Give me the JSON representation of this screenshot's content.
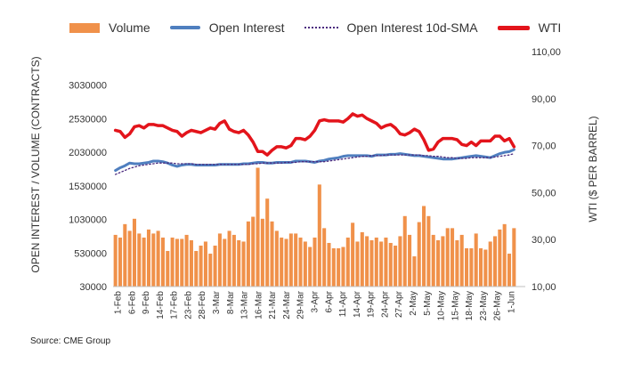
{
  "chart_data": {
    "type": "bar",
    "legend_placement": "top",
    "grid": false,
    "title": "",
    "ylabel_left": "OPEN INTEREST / VOLUME (CONTRACTS)",
    "ylabel_right": "WTI ($ PER BARREL)",
    "left_ticks": [
      "30000",
      "530000",
      "1030000",
      "1530000",
      "2030000",
      "2530000",
      "3030000"
    ],
    "left_range": [
      30000,
      3530000
    ],
    "right_ticks": [
      "10,00",
      "30,00",
      "50,00",
      "70,00",
      "90,00",
      "110,00"
    ],
    "right_range": [
      10,
      110
    ],
    "x_tick_labels": [
      "1-Feb",
      "6-Feb",
      "9-Feb",
      "14-Feb",
      "17-Feb",
      "23-Feb",
      "28-Feb",
      "3-Mar",
      "8-Mar",
      "13-Mar",
      "16-Mar",
      "21-Mar",
      "24-Mar",
      "29-Mar",
      "3-Apr",
      "6-Apr",
      "11-Apr",
      "14-Apr",
      "19-Apr",
      "24-Apr",
      "27-Apr",
      "2-May",
      "5-May",
      "10-May",
      "15-May",
      "18-May",
      "23-May",
      "26-May",
      "1-Jun"
    ],
    "series": [
      {
        "name": "Volume",
        "kind": "bar",
        "axis": "left",
        "color": "#f0914a",
        "values": [
          800000,
          760000,
          960000,
          860000,
          1040000,
          820000,
          760000,
          880000,
          820000,
          860000,
          760000,
          560000,
          760000,
          740000,
          740000,
          800000,
          720000,
          560000,
          640000,
          700000,
          520000,
          640000,
          820000,
          740000,
          860000,
          800000,
          720000,
          700000,
          1000000,
          1070000,
          1800000,
          1040000,
          1340000,
          1000000,
          860000,
          760000,
          740000,
          820000,
          820000,
          760000,
          700000,
          620000,
          760000,
          1550000,
          900000,
          680000,
          600000,
          600000,
          620000,
          760000,
          980000,
          700000,
          840000,
          780000,
          720000,
          760000,
          700000,
          760000,
          680000,
          640000,
          780000,
          1080000,
          800000,
          480000,
          990000,
          1230000,
          1080000,
          800000,
          720000,
          780000,
          900000,
          900000,
          720000,
          800000,
          600000,
          600000,
          820000,
          600000,
          580000,
          700000,
          780000,
          880000,
          960000,
          520000,
          900000
        ]
      },
      {
        "name": "Open Interest",
        "kind": "line",
        "axis": "left",
        "color": "#4f7fbf",
        "values": [
          1760000,
          1800000,
          1830000,
          1870000,
          1860000,
          1860000,
          1870000,
          1880000,
          1900000,
          1900000,
          1890000,
          1870000,
          1840000,
          1820000,
          1840000,
          1850000,
          1850000,
          1840000,
          1840000,
          1840000,
          1840000,
          1840000,
          1850000,
          1850000,
          1850000,
          1850000,
          1850000,
          1860000,
          1860000,
          1870000,
          1880000,
          1880000,
          1870000,
          1870000,
          1880000,
          1880000,
          1880000,
          1880000,
          1900000,
          1900000,
          1900000,
          1890000,
          1880000,
          1900000,
          1910000,
          1930000,
          1940000,
          1950000,
          1970000,
          1980000,
          1980000,
          1980000,
          1980000,
          1980000,
          1970000,
          1990000,
          1990000,
          1990000,
          2000000,
          2000000,
          2010000,
          2000000,
          1990000,
          1980000,
          1980000,
          1970000,
          1960000,
          1950000,
          1940000,
          1930000,
          1930000,
          1930000,
          1940000,
          1950000,
          1960000,
          1970000,
          1980000,
          1970000,
          1960000,
          1950000,
          1980000,
          2010000,
          2030000,
          2040000,
          2070000
        ]
      },
      {
        "name": "Open Interest 10d-SMA",
        "kind": "dotted-line",
        "axis": "left",
        "color": "#4b2a7f",
        "values": [
          1700000,
          1730000,
          1760000,
          1790000,
          1810000,
          1830000,
          1840000,
          1850000,
          1860000,
          1870000,
          1870000,
          1870000,
          1870000,
          1860000,
          1860000,
          1860000,
          1860000,
          1850000,
          1850000,
          1850000,
          1850000,
          1850000,
          1850000,
          1850000,
          1850000,
          1850000,
          1850000,
          1850000,
          1850000,
          1860000,
          1860000,
          1870000,
          1870000,
          1870000,
          1870000,
          1870000,
          1880000,
          1880000,
          1880000,
          1890000,
          1890000,
          1890000,
          1890000,
          1890000,
          1890000,
          1900000,
          1910000,
          1920000,
          1930000,
          1940000,
          1950000,
          1960000,
          1970000,
          1970000,
          1980000,
          1980000,
          1980000,
          1990000,
          1990000,
          1990000,
          1990000,
          1990000,
          1990000,
          1990000,
          1990000,
          1980000,
          1980000,
          1970000,
          1970000,
          1960000,
          1950000,
          1950000,
          1940000,
          1940000,
          1940000,
          1950000,
          1950000,
          1950000,
          1950000,
          1950000,
          1960000,
          1970000,
          1980000,
          1990000,
          2010000
        ]
      },
      {
        "name": "WTI",
        "kind": "thick-line",
        "axis": "right",
        "color": "#e3141b",
        "values": [
          76.5,
          76.0,
          73.5,
          75.0,
          78.0,
          78.5,
          77.5,
          79.0,
          79.0,
          78.5,
          78.5,
          77.5,
          76.5,
          76.0,
          74.0,
          75.5,
          76.5,
          76.0,
          75.5,
          76.5,
          77.5,
          77.0,
          79.5,
          80.5,
          77.0,
          76.0,
          75.5,
          76.5,
          74.5,
          71.5,
          67.5,
          67.5,
          66.0,
          68.0,
          69.5,
          69.5,
          69.0,
          70.0,
          73.0,
          73.0,
          72.5,
          74.0,
          76.5,
          80.5,
          81.0,
          80.5,
          80.5,
          80.5,
          80.0,
          81.5,
          83.5,
          82.5,
          83.0,
          81.5,
          80.5,
          79.5,
          77.5,
          78.5,
          79.0,
          77.5,
          75.0,
          74.5,
          75.5,
          77.0,
          76.0,
          72.5,
          68.0,
          68.5,
          71.5,
          73.0,
          73.0,
          73.0,
          72.5,
          70.5,
          70.0,
          71.5,
          70.0,
          72.0,
          72.0,
          72.0,
          74.0,
          74.0,
          72.0,
          73.0,
          69.5
        ]
      }
    ],
    "source": "Source: CME Group"
  }
}
